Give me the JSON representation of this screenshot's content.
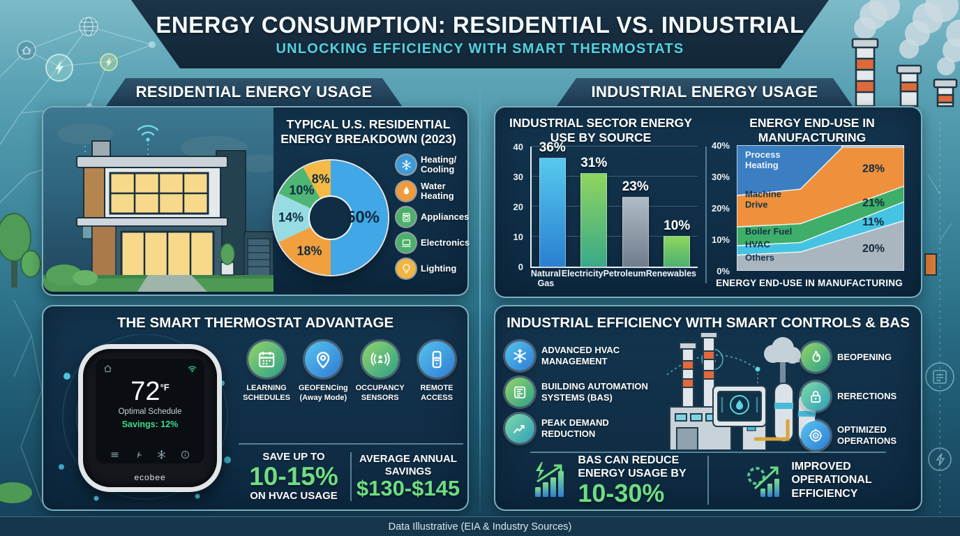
{
  "header": {
    "title": "ENERGY CONSUMPTION: RESIDENTIAL VS. INDUSTRIAL",
    "subtitle": "UNLOCKING EFFICIENCY WITH SMART THERMOSTATS"
  },
  "colors": {
    "accent_green": "#6fdd82",
    "subtitle_cyan": "#55d2de",
    "panel_navy": "#10304a",
    "banner_navy": "#122637"
  },
  "residential": {
    "tab": "RESIDENTIAL ENERGY USAGE",
    "legend": [
      {
        "icon": "snowflake-icon",
        "color": "#3e9ada",
        "label_lines": [
          "Heating/",
          "Cooling"
        ]
      },
      {
        "icon": "droplet-icon",
        "color": "#ef9b3c",
        "label_lines": [
          "Water",
          "Heating"
        ]
      },
      {
        "icon": "appliance-icon",
        "color": "#4cb06b",
        "label_lines": [
          "Appliances"
        ]
      },
      {
        "icon": "laptop-icon",
        "color": "#4cb06b",
        "label_lines": [
          "Electronics"
        ]
      },
      {
        "icon": "bulb-icon",
        "color": "#f0b545",
        "label_lines": [
          "Lighting"
        ]
      }
    ]
  },
  "industrial": {
    "tab": "INDUSTRIAL ENERGY USAGE"
  },
  "chart_data": [
    {
      "type": "pie",
      "title": "TYPICAL U.S. RESIDENTIAL ENERGY BREAKDOWN (2023)",
      "labels": [
        "Heating/Cooling",
        "Water Heating",
        "Appliances",
        "Electronics",
        "Lighting"
      ],
      "values": [
        50,
        18,
        14,
        10,
        8
      ],
      "colors": [
        "#41a7e6",
        "#f2a03e",
        "#97dce2",
        "#4eb575",
        "#f4ba45"
      ],
      "donut_hole": true,
      "legend_position": "right"
    },
    {
      "type": "bar",
      "title": "INDUSTRIAL SECTOR ENERGY USE BY SOURCE",
      "categories": [
        "Natural Gas",
        "Electricity",
        "Petroleum",
        "Renewables"
      ],
      "values": [
        36,
        31,
        23,
        10
      ],
      "value_labels": [
        "36%",
        "31%",
        "23%",
        "10%"
      ],
      "bar_colors": [
        [
          "#56c9ee",
          "#2a7fd0"
        ],
        [
          "#8fd55f",
          "#38a988"
        ],
        [
          "#b0bbc6",
          "#6f7d8b"
        ],
        [
          "#8fd55f",
          "#4ab170"
        ]
      ],
      "ylim": [
        0,
        40
      ],
      "yticks": [
        "0",
        "10",
        "20",
        "30",
        "40"
      ],
      "grid": true
    },
    {
      "type": "area",
      "title": "ENERGY END-USE IN MANUFACTURING",
      "caption": "ENERGY END-USE IN MANUFACTURING",
      "ylim": [
        0,
        40
      ],
      "yticks": [
        "0%",
        "10%",
        "20%",
        "30%",
        "40%"
      ],
      "layers": [
        {
          "name": "Others",
          "color": "#a9b5bf",
          "poly": [
            [
              0,
              0
            ],
            [
              100,
              0
            ],
            [
              100,
              16
            ],
            [
              38,
              6
            ],
            [
              0,
              5
            ]
          ]
        },
        {
          "name": "HVAC",
          "color": "#45c3e2",
          "poly": [
            [
              0,
              5
            ],
            [
              38,
              6
            ],
            [
              100,
              16
            ],
            [
              100,
              22
            ],
            [
              38,
              9
            ],
            [
              0,
              8
            ]
          ]
        },
        {
          "name": "Boiler Fuel",
          "color": "#3fae68",
          "poly": [
            [
              0,
              8
            ],
            [
              38,
              9
            ],
            [
              100,
              22
            ],
            [
              100,
              27
            ],
            [
              38,
              15
            ],
            [
              0,
              14
            ]
          ]
        },
        {
          "name": "Machine Drive",
          "color": "#ef913c",
          "poly": [
            [
              0,
              14
            ],
            [
              38,
              15
            ],
            [
              100,
              27
            ],
            [
              100,
              39.3
            ],
            [
              63,
              39.3
            ],
            [
              38,
              26
            ],
            [
              0,
              24
            ]
          ]
        },
        {
          "name": "Process Heating",
          "color": "#3b7ec2",
          "poly": [
            [
              0,
              24
            ],
            [
              38,
              26
            ],
            [
              63,
              39.3
            ],
            [
              62.5,
              40
            ],
            [
              0,
              40
            ]
          ]
        }
      ],
      "name_labels": [
        {
          "lines": [
            "Process",
            "Heating"
          ],
          "x": 5,
          "y": 36,
          "color": "#eaf4fb"
        },
        {
          "lines": [
            "Machine",
            "Drive"
          ],
          "x": 5,
          "y": 23.5,
          "color": "#15324a"
        },
        {
          "lines": [
            "Boiler Fuel"
          ],
          "x": 5,
          "y": 11.6,
          "color": "#15324a"
        },
        {
          "lines": [
            "HVAC"
          ],
          "x": 5,
          "y": 7.4,
          "color": "#15324a"
        },
        {
          "lines": [
            "Others"
          ],
          "x": 5,
          "y": 3.2,
          "color": "#15324a"
        }
      ],
      "value_labels": [
        {
          "layer": "Machine Drive",
          "text": "28%",
          "x": 75,
          "y": 31.5
        },
        {
          "layer": "Boiler Fuel",
          "text": "21%",
          "x": 75,
          "y": 20.6
        },
        {
          "layer": "HVAC",
          "text": "11%",
          "x": 75,
          "y": 14.5
        },
        {
          "layer": "Others",
          "text": "20%",
          "x": 75,
          "y": 6.0
        }
      ]
    }
  ],
  "thermostat": {
    "title": "THE SMART THERMOSTAT ADVANTAGE",
    "device": {
      "temp": "72",
      "temp_unit": "°F",
      "status": "Optimal Schedule",
      "savings": "Savings: 12%",
      "brand": "ecobee",
      "screen_icons": [
        "home-icon",
        "wifi-icon",
        "menu-icon",
        "fan-icon",
        "snowflake-icon",
        "info-icon"
      ]
    },
    "features": [
      {
        "icon": "calendar-icon",
        "grad": "green",
        "label_lines": [
          "LEARNING",
          "SCHEDULES"
        ]
      },
      {
        "icon": "location-pin-icon",
        "grad": "blue",
        "label_lines": [
          "GEOFENCing",
          "(Away Mode)"
        ]
      },
      {
        "icon": "occupancy-sensor-icon",
        "grad": "green",
        "label_lines": [
          "OCCUPANCY",
          "SENSORS"
        ]
      },
      {
        "icon": "smartphone-icon",
        "grad": "blue",
        "label_lines": [
          "REMOTE",
          "ACCESS"
        ]
      }
    ],
    "stats": [
      {
        "top": "SAVE UP TO",
        "value": "10-15%",
        "bottom": "ON HVAC USAGE"
      },
      {
        "top_lines": [
          "AVERAGE ANNUAL",
          "SAVINGS"
        ],
        "value": "$130-$145"
      }
    ]
  },
  "bas": {
    "title": "INDUSTRIAL EFFICIENCY WITH SMART CONTROLS & BAS",
    "features_left": [
      {
        "icon": "snowflake-icon",
        "grad": "blue",
        "label_lines": [
          "ADVANCED HVAC",
          "MANAGEMENT"
        ]
      },
      {
        "icon": "automation-panel-icon",
        "grad": "green",
        "label_lines": [
          "BUILDING AUTOMATION",
          "SYSTEMS (BAS)"
        ]
      },
      {
        "icon": "trend-chart-icon",
        "grad": "teal",
        "label_lines": [
          "PEAK DEMAND",
          "REDUCTION"
        ]
      }
    ],
    "features_right": [
      {
        "icon": "flame-icon",
        "grad": "green",
        "label_lines": [
          "BEOPENING"
        ]
      },
      {
        "icon": "lock-icon",
        "grad": "teal",
        "label_lines": [
          "RERECTIONS"
        ]
      },
      {
        "icon": "target-icon",
        "grad": "blue",
        "label_lines": [
          "OPTIMIZED",
          "OPERATIONS"
        ]
      }
    ],
    "stats": [
      {
        "icon": "energy-bars-icon",
        "label_lines": [
          "BAS CAN REDUCE",
          "ENERGY USAGE BY"
        ],
        "value": "10-30%"
      },
      {
        "icon": "gear-growth-icon",
        "label_lines": [
          "IMPROVED",
          "OPERATIONAL",
          "EFFICIENCY"
        ]
      }
    ]
  },
  "footer": {
    "text": "Data Illustrative (EIA & Industry Sources)"
  }
}
